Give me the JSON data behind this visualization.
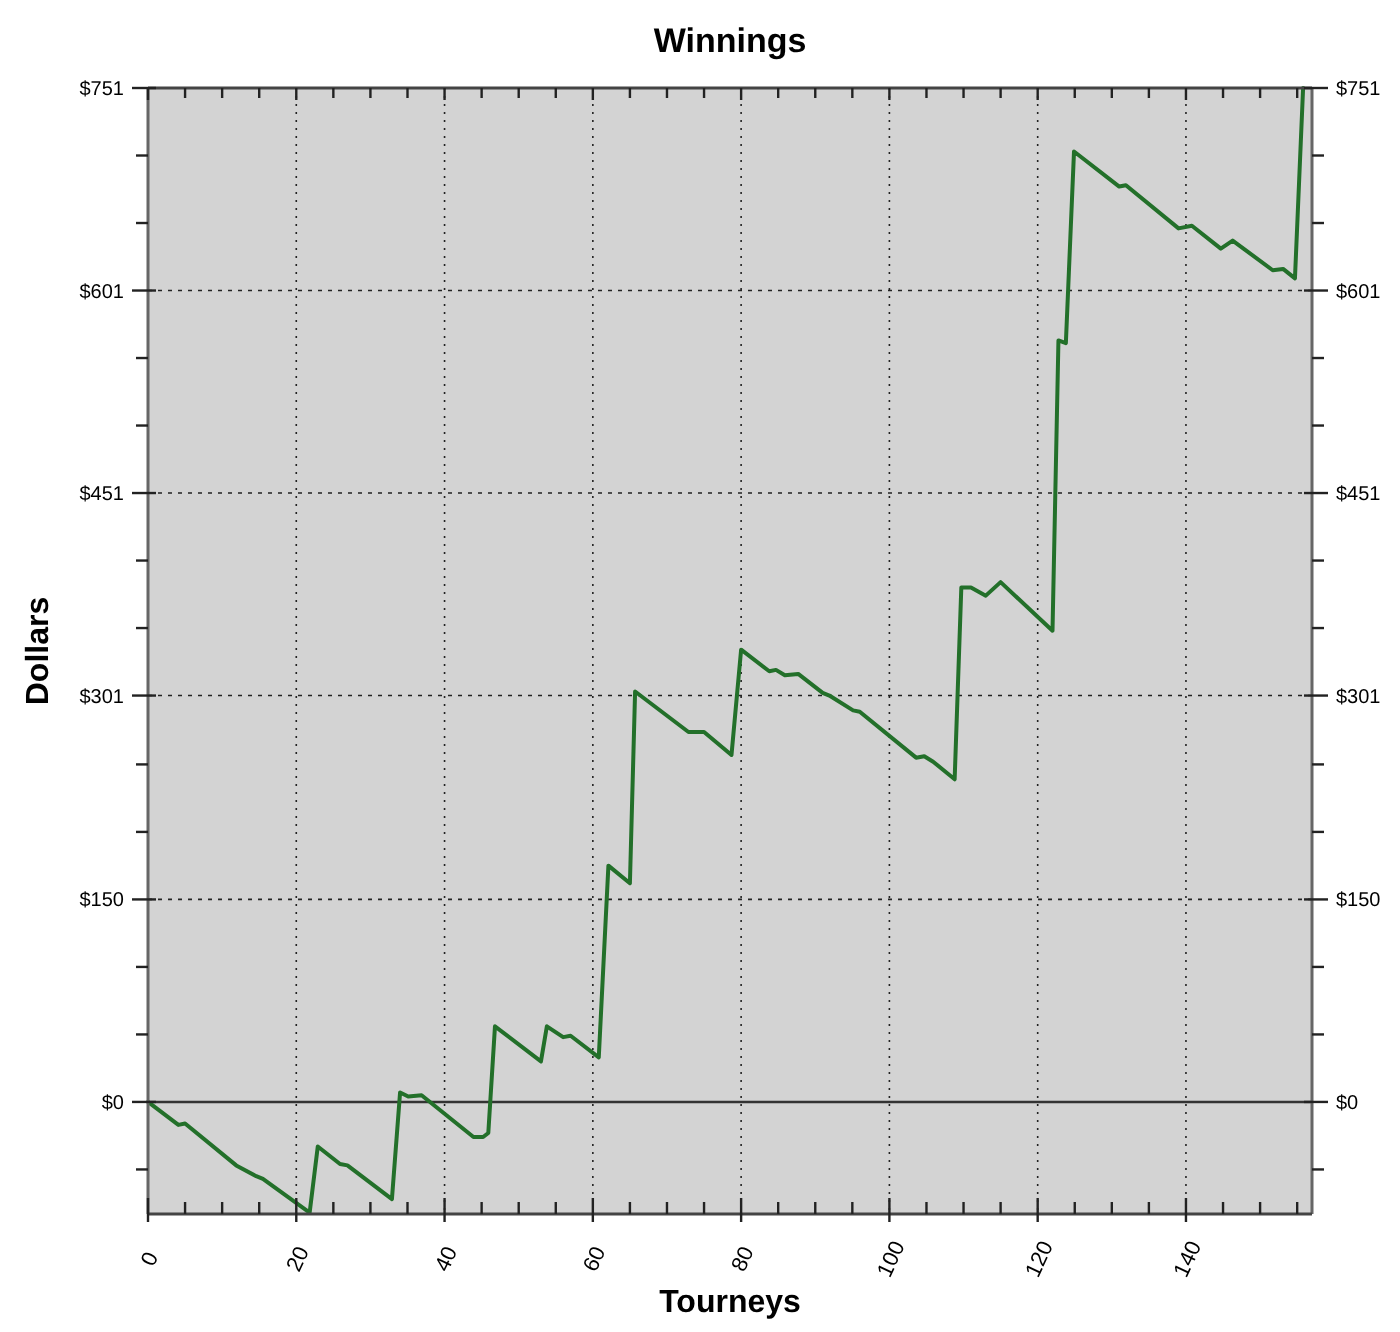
{
  "chart_data": {
    "type": "line",
    "title": "Winnings",
    "xlabel": "Tourneys",
    "ylabel": "Dollars",
    "x": [
      0,
      4.1,
      5,
      11.9,
      14.6,
      15.5,
      21.8,
      22.9,
      25.9,
      26.9,
      32.9,
      34,
      35.1,
      36.9,
      43.9,
      45.2,
      45.9,
      46.8,
      53,
      53.8,
      56,
      57,
      60.8,
      62.1,
      65,
      65.7,
      72.9,
      75,
      78.7,
      80,
      83.8,
      84.7,
      85.9,
      87.7,
      91,
      91.9,
      95.1,
      96,
      103.6,
      104.7,
      105.9,
      108.8,
      109.7,
      111,
      113,
      115,
      122,
      122.8,
      123.8,
      124.9,
      131,
      131.9,
      139,
      140.8,
      144.7,
      146.3,
      151.7,
      153.1,
      154.7,
      155.8
    ],
    "series": [
      {
        "color": "#23702a",
        "values": [
          0,
          -17,
          -16,
          -47,
          -55,
          -57,
          -82,
          -33,
          -46,
          -47,
          -72,
          7,
          4,
          5,
          -26,
          -26,
          -23,
          56,
          30,
          56,
          48,
          49,
          33,
          175,
          162,
          304,
          274,
          274,
          257,
          335,
          319,
          320,
          316,
          317,
          303,
          301,
          290,
          289,
          255,
          256,
          252,
          239,
          381,
          381,
          375,
          385,
          349,
          564,
          562,
          704,
          678,
          679,
          647,
          649,
          632,
          638,
          616,
          617,
          610,
          751
        ]
      }
    ],
    "xlim": [
      0,
      157
    ],
    "xticks": [
      0,
      {
        "value": 5,
        "label": null
      },
      {
        "value": 10,
        "label": null
      },
      {
        "value": 15,
        "label": null
      },
      20,
      {
        "value": 25,
        "label": null
      },
      {
        "value": 30,
        "label": null
      },
      {
        "value": 35,
        "label": null
      },
      40,
      {
        "value": 45,
        "label": null
      },
      {
        "value": 50,
        "label": null
      },
      {
        "value": 55,
        "label": null
      },
      60,
      {
        "value": 65,
        "label": null
      },
      {
        "value": 70,
        "label": null
      },
      {
        "value": 75,
        "label": null
      },
      80,
      {
        "value": 85,
        "label": null
      },
      {
        "value": 90,
        "label": null
      },
      {
        "value": 95,
        "label": null
      },
      100,
      {
        "value": 105,
        "label": null
      },
      {
        "value": 110,
        "label": null
      },
      {
        "value": 115,
        "label": null
      },
      120,
      {
        "value": 125,
        "label": null
      },
      {
        "value": 130,
        "label": null
      },
      {
        "value": 135,
        "label": null
      },
      140,
      {
        "value": 145,
        "label": null
      },
      {
        "value": 150,
        "label": null
      },
      {
        "value": 155,
        "label": null
      }
    ],
    "ylim": [
      -83,
      751
    ],
    "yticks": [
      {
        "value": -50,
        "label": null
      },
      {
        "value": 0,
        "label": "$0"
      },
      {
        "value": 50,
        "label": null
      },
      {
        "value": 100,
        "label": null
      },
      {
        "value": 150,
        "label": "$150"
      },
      {
        "value": 200,
        "label": null
      },
      {
        "value": 250,
        "label": null
      },
      {
        "value": 301,
        "label": "$301"
      },
      {
        "value": 351,
        "label": null
      },
      {
        "value": 401,
        "label": null
      },
      {
        "value": 451,
        "label": "$451"
      },
      {
        "value": 501,
        "label": null
      },
      {
        "value": 551,
        "label": null
      },
      {
        "value": 601,
        "label": "$601"
      },
      {
        "value": 651,
        "label": null
      },
      {
        "value": 701,
        "label": null
      },
      {
        "value": 751,
        "label": "$751"
      }
    ],
    "y2lim": [
      -83,
      751
    ],
    "y2ticks": [
      {
        "value": -50,
        "label": null
      },
      {
        "value": 0,
        "label": "$0"
      },
      {
        "value": 50,
        "label": null
      },
      {
        "value": 100,
        "label": null
      },
      {
        "value": 150,
        "label": "$150"
      },
      {
        "value": 200,
        "label": null
      },
      {
        "value": 250,
        "label": null
      },
      {
        "value": 301,
        "label": "$301"
      },
      {
        "value": 351,
        "label": null
      },
      {
        "value": 401,
        "label": null
      },
      {
        "value": 451,
        "label": "$451"
      },
      {
        "value": 501,
        "label": null
      },
      {
        "value": 551,
        "label": null
      },
      {
        "value": 601,
        "label": "$601"
      },
      {
        "value": 651,
        "label": null
      },
      {
        "value": 701,
        "label": null
      },
      {
        "value": 751,
        "label": "$751"
      }
    ],
    "ref_lines": [
      {
        "axis": "y",
        "value": 0,
        "color": "#333333",
        "line_style": "solid"
      }
    ],
    "grid": true,
    "line_style": "solid",
    "marker": "none"
  }
}
